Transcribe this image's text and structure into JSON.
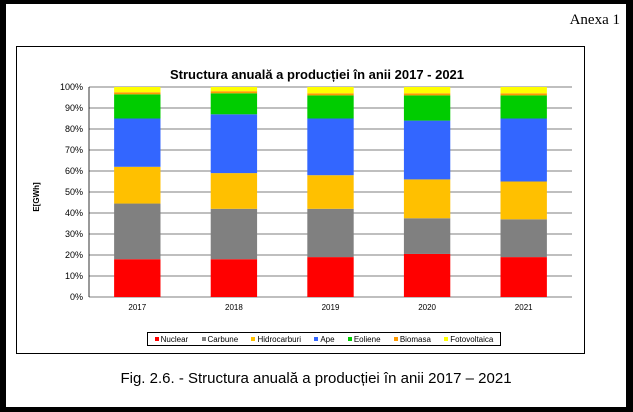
{
  "annex_label": "Anexa 1",
  "caption": "Fig. 2.6. - Structura anuală a producției în anii 2017 – 2021",
  "chart_data": {
    "type": "bar",
    "stacked": true,
    "title": "Structura anuală a producției în anii 2017 - 2021",
    "ylabel": "E[GWh]",
    "xlabel": "",
    "ylim": [
      0,
      100
    ],
    "yticks": [
      "0%",
      "10%",
      "20%",
      "30%",
      "40%",
      "50%",
      "60%",
      "70%",
      "80%",
      "90%",
      "100%"
    ],
    "categories": [
      "2017",
      "2018",
      "2019",
      "2020",
      "2021"
    ],
    "legend_position": "bottom",
    "grid": true,
    "series": [
      {
        "name": "Nuclear",
        "color": "#ff0000",
        "values": [
          18,
          18,
          19,
          20.5,
          19
        ]
      },
      {
        "name": "Carbune",
        "color": "#808080",
        "values": [
          26.5,
          24,
          23,
          17,
          18
        ]
      },
      {
        "name": "Hidrocarburi",
        "color": "#ffc000",
        "values": [
          17.5,
          17,
          16,
          18.5,
          18
        ]
      },
      {
        "name": "Ape",
        "color": "#3366ff",
        "values": [
          23,
          28,
          27,
          28,
          30
        ]
      },
      {
        "name": "Eoliene",
        "color": "#00cc00",
        "values": [
          11.5,
          10,
          11,
          12,
          11
        ]
      },
      {
        "name": "Biomasa",
        "color": "#ff9900",
        "values": [
          1,
          1,
          1,
          1,
          1
        ]
      },
      {
        "name": "Fotovoltaica",
        "color": "#ffff00",
        "values": [
          2.5,
          2,
          3,
          3,
          3
        ]
      }
    ]
  }
}
